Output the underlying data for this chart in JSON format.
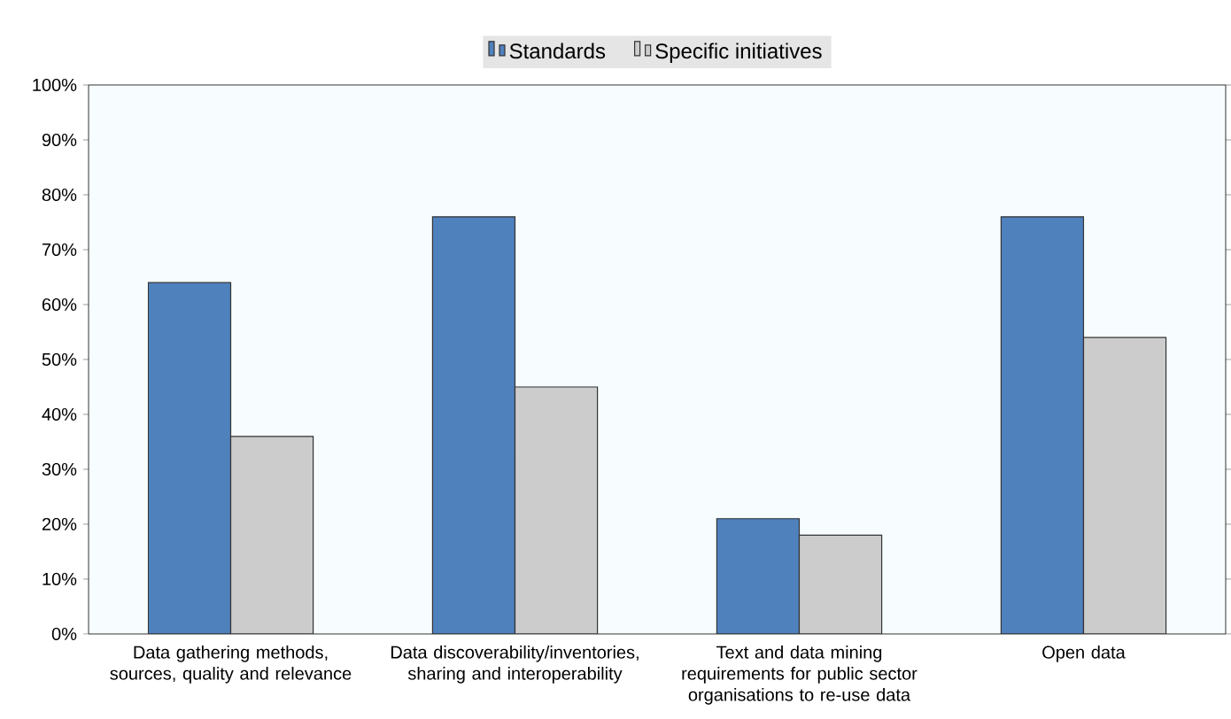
{
  "chart_data": {
    "type": "bar",
    "categories": [
      "Data gathering methods, sources, quality and relevance",
      "Data discoverability/inventories, sharing and interoperability",
      "Text and data mining requirements for public sector organisations to re-use data",
      "Open data"
    ],
    "series": [
      {
        "name": "Standards",
        "color": "#4f81bd",
        "values": [
          64,
          76,
          21,
          76
        ]
      },
      {
        "name": "Specific initiatives",
        "color": "#cccccc",
        "values": [
          36,
          45,
          18,
          54
        ]
      }
    ],
    "ylim": [
      0,
      100
    ],
    "yticks": [
      {
        "value": 0,
        "label": "0%"
      },
      {
        "value": 10,
        "label": "10%"
      },
      {
        "value": 20,
        "label": "20%"
      },
      {
        "value": 30,
        "label": "30%"
      },
      {
        "value": 40,
        "label": "40%"
      },
      {
        "value": 50,
        "label": "50%"
      },
      {
        "value": 60,
        "label": "60%"
      },
      {
        "value": 70,
        "label": "70%"
      },
      {
        "value": 80,
        "label": "80%"
      },
      {
        "value": 90,
        "label": "90%"
      },
      {
        "value": 100,
        "label": "100%"
      }
    ],
    "legend": "top"
  }
}
